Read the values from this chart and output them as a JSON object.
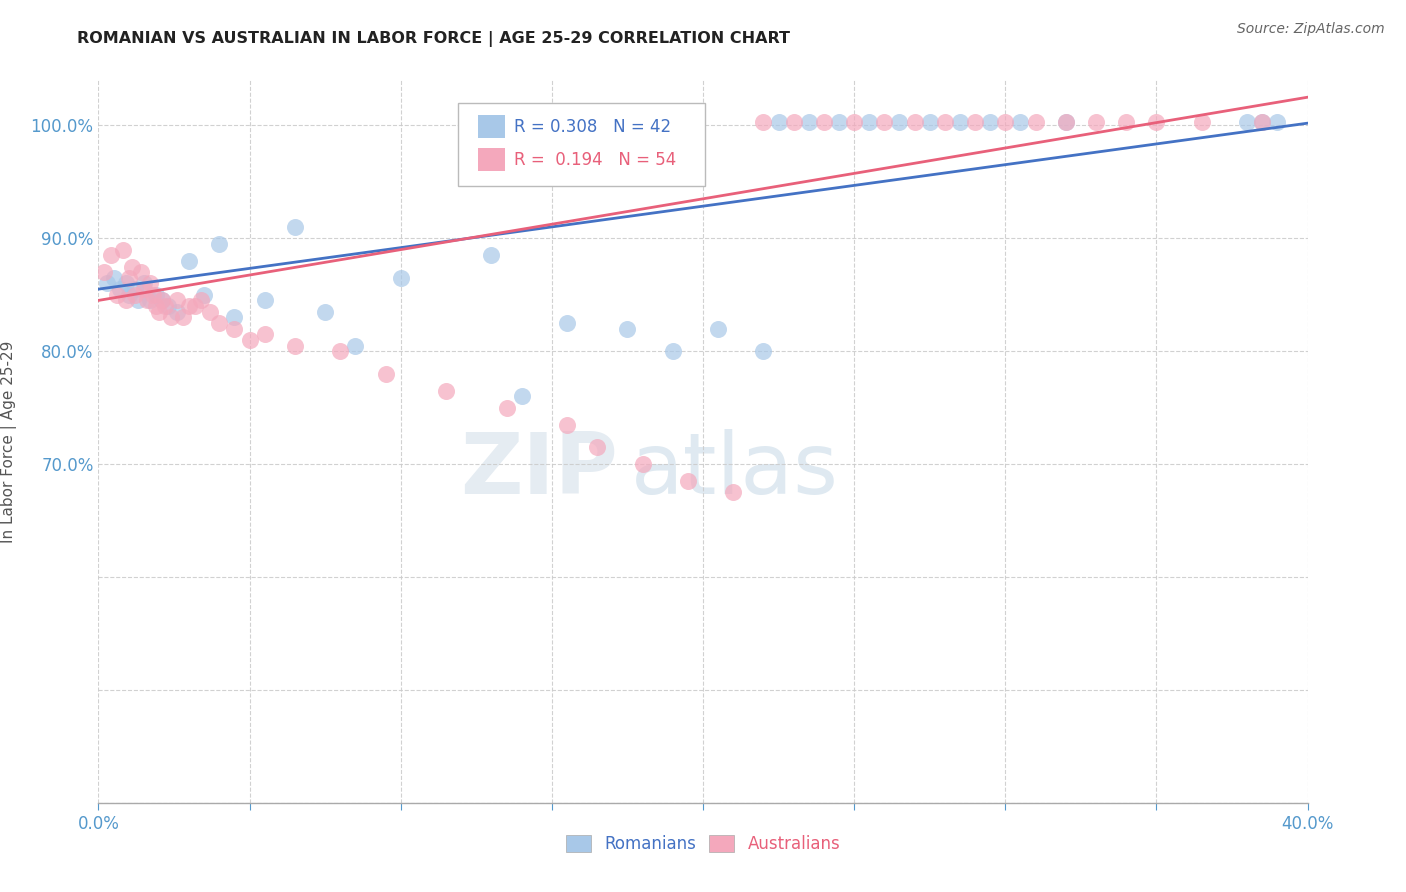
{
  "title": "ROMANIAN VS AUSTRALIAN IN LABOR FORCE | AGE 25-29 CORRELATION CHART",
  "source": "Source: ZipAtlas.com",
  "ylabel": "In Labor Force | Age 25-29",
  "xlim": [
    0.0,
    40.0
  ],
  "ylim": [
    40.0,
    104.0
  ],
  "blue_scatter_color": "#a8c8e8",
  "pink_scatter_color": "#f4a8bc",
  "blue_line_color": "#4472c4",
  "pink_line_color": "#e8607a",
  "blue_legend_color": "#4472c4",
  "pink_legend_color": "#e8607a",
  "legend_r_blue": "R = 0.308",
  "legend_n_blue": "N = 42",
  "legend_r_pink": "R =  0.194",
  "legend_n_pink": "N = 54",
  "watermark_zip": "ZIP",
  "watermark_atlas": "atlas",
  "romanians_x": [
    0.3,
    0.5,
    0.7,
    0.9,
    1.0,
    1.2,
    1.3,
    1.5,
    1.7,
    1.9,
    2.1,
    2.3,
    2.6,
    3.0,
    3.5,
    4.0,
    4.5,
    5.5,
    6.5,
    7.5,
    8.5,
    10.0,
    13.0,
    14.0,
    15.5,
    17.5,
    19.0,
    20.5,
    22.0,
    22.5,
    23.5,
    24.5,
    25.5,
    26.5,
    27.5,
    28.5,
    29.5,
    30.5,
    32.0,
    38.0,
    38.5,
    39.0
  ],
  "romanians_y": [
    86.0,
    86.5,
    85.5,
    86.0,
    85.0,
    85.5,
    84.5,
    86.0,
    84.5,
    85.0,
    84.5,
    84.0,
    83.5,
    88.0,
    85.0,
    89.5,
    83.0,
    84.5,
    91.0,
    83.5,
    80.5,
    86.5,
    88.5,
    76.0,
    82.5,
    82.0,
    80.0,
    82.0,
    80.0,
    100.3,
    100.3,
    100.3,
    100.3,
    100.3,
    100.3,
    100.3,
    100.3,
    100.3,
    100.3,
    100.3,
    100.3,
    100.3
  ],
  "australians_x": [
    0.2,
    0.4,
    0.6,
    0.8,
    0.9,
    1.0,
    1.1,
    1.2,
    1.4,
    1.5,
    1.6,
    1.7,
    1.8,
    1.9,
    2.0,
    2.1,
    2.2,
    2.4,
    2.6,
    2.8,
    3.0,
    3.2,
    3.4,
    3.7,
    4.0,
    4.5,
    5.0,
    5.5,
    6.5,
    8.0,
    9.5,
    11.5,
    13.5,
    15.5,
    16.5,
    18.0,
    19.5,
    21.0,
    22.0,
    23.0,
    24.0,
    25.0,
    26.0,
    27.0,
    28.0,
    29.0,
    30.0,
    31.0,
    32.0,
    33.0,
    34.0,
    35.0,
    36.5,
    38.5
  ],
  "australians_y": [
    87.0,
    88.5,
    85.0,
    89.0,
    84.5,
    86.5,
    87.5,
    85.0,
    87.0,
    85.5,
    84.5,
    86.0,
    85.0,
    84.0,
    83.5,
    84.5,
    84.0,
    83.0,
    84.5,
    83.0,
    84.0,
    84.0,
    84.5,
    83.5,
    82.5,
    82.0,
    81.0,
    81.5,
    80.5,
    80.0,
    78.0,
    76.5,
    75.0,
    73.5,
    71.5,
    70.0,
    68.5,
    67.5,
    100.3,
    100.3,
    100.3,
    100.3,
    100.3,
    100.3,
    100.3,
    100.3,
    100.3,
    100.3,
    100.3,
    100.3,
    100.3,
    100.3,
    100.3,
    100.3
  ]
}
